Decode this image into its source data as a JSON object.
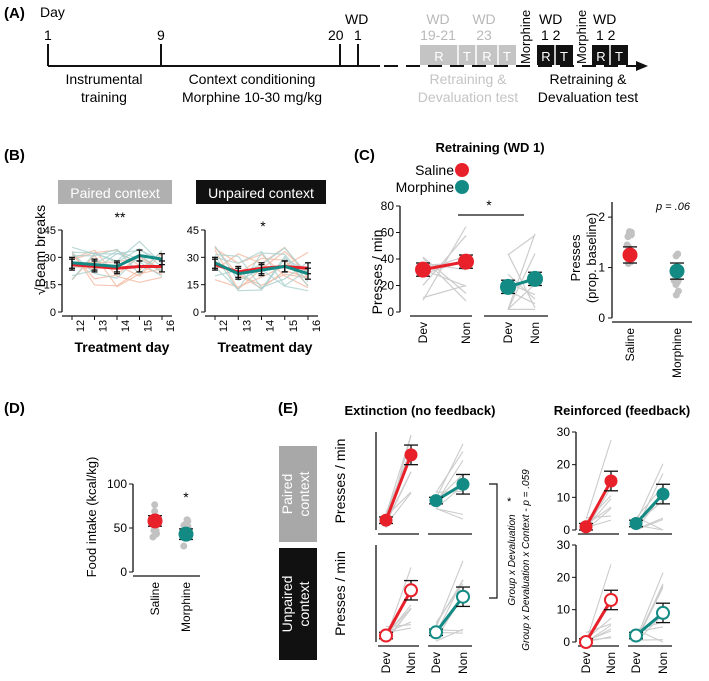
{
  "colors": {
    "saline": "#e8202a",
    "morphine": "#138a84",
    "gray": "#b9b9b9",
    "dark": "#111111",
    "lightgray": "#c4c4c4",
    "bgline": "#cfcfcf"
  },
  "panel_a": {
    "label": "(A)",
    "day_label": "Day",
    "ticks": [
      {
        "t": "1"
      },
      {
        "t": "9"
      },
      {
        "t": "20"
      },
      {
        "t": "1"
      }
    ],
    "wd_label": "WD",
    "phase1": "Instrumental",
    "phase1b": "training",
    "phase2": "Context conditioning",
    "phase2b": "Morphine 10-30 mg/kg",
    "gray_wd1": "WD",
    "gray_wd1_days": "19-21",
    "gray_wd2": "WD",
    "gray_wd2_days": "23",
    "gray_boxes": [
      "R",
      "T",
      "R",
      "T"
    ],
    "gray_caption1": "Retraining &",
    "gray_caption2": "Devaluation test",
    "morphine_label1": "Morphine",
    "morphine_label2": "Morphine",
    "black_wd1": "WD",
    "black_wd1_days": "1   2",
    "black_wd2": "WD",
    "black_wd2_days": "1   2",
    "black_boxes": [
      "R",
      "T",
      "R",
      "T"
    ],
    "black_caption1": "Retraining &",
    "black_caption2": "Devaluation test"
  },
  "panel_b": {
    "label": "(B)",
    "ylabel": "√Beam breaks",
    "paired_title": "Paired context",
    "unpaired_title": "Unpaired context",
    "paired_sig": "**",
    "unpaired_sig": "*",
    "xlabel": "Treatment day",
    "xticks": [
      "12",
      "13",
      "14",
      "15",
      "16"
    ],
    "yticks": [
      "0",
      "15",
      "30",
      "45"
    ]
  },
  "panel_c": {
    "label": "(C)",
    "title": "Retraining (WD 1)",
    "legend_saline": "Saline",
    "legend_morphine": "Morphine",
    "ylabel": "Presses / min",
    "yticks": [
      "0",
      "20",
      "40",
      "60",
      "80"
    ],
    "xticks": [
      "Dev",
      "Non",
      "Dev",
      "Non"
    ],
    "sig": "*",
    "right_ylabel1": "Presses",
    "right_ylabel2": "(prop. baseline)",
    "right_yticks": [
      "0",
      "1",
      "2"
    ],
    "right_p": "p = .06",
    "right_xticks": [
      "Saline",
      "Morphine"
    ]
  },
  "panel_d": {
    "label": "(D)",
    "ylabel": "Food intake (kcal/kg)",
    "yticks": [
      "0",
      "50",
      "100"
    ],
    "xticks": [
      "Saline",
      "Morphine"
    ],
    "sig": "*"
  },
  "panel_e": {
    "label": "(E)",
    "title_left": "Extinction (no feedback)",
    "title_right": "Reinforced (feedback)",
    "row1_label1": "Paired",
    "row1_label2": "context",
    "row2_label1": "Unpaired",
    "row2_label2": "context",
    "ylabel": "Presses / min",
    "yticks": [
      "0",
      "10",
      "20",
      "30"
    ],
    "xticks": [
      "Dev",
      "Non",
      "Dev",
      "Non"
    ],
    "stat1": "Group x Devaluation",
    "stat2": "Group x Devaluation x Context - p = .059",
    "stat_sig": "*"
  },
  "chart_data": [
    {
      "id": "B-paired",
      "type": "line",
      "title": "Paired context",
      "xlabel": "Treatment day",
      "ylabel": "√Beam breaks",
      "x": [
        12,
        13,
        14,
        15,
        16
      ],
      "ylim": [
        0,
        45
      ],
      "series": [
        {
          "name": "Saline",
          "values": [
            26,
            25,
            24,
            25,
            25
          ]
        },
        {
          "name": "Morphine",
          "values": [
            27,
            26,
            25,
            31,
            29
          ]
        }
      ]
    },
    {
      "id": "B-unpaired",
      "type": "line",
      "title": "Unpaired context",
      "xlabel": "Treatment day",
      "ylabel": "√Beam breaks",
      "x": [
        12,
        13,
        14,
        15,
        16
      ],
      "ylim": [
        0,
        45
      ],
      "series": [
        {
          "name": "Saline",
          "values": [
            26,
            22,
            24,
            25,
            24
          ]
        },
        {
          "name": "Morphine",
          "values": [
            27,
            21,
            23,
            25,
            21
          ]
        }
      ]
    },
    {
      "id": "C-retraining",
      "type": "line",
      "title": "Retraining (WD 1)",
      "ylabel": "Presses / min",
      "ylim": [
        0,
        80
      ],
      "categories": [
        "Dev",
        "Non"
      ],
      "series": [
        {
          "name": "Saline",
          "values": [
            32,
            38
          ]
        },
        {
          "name": "Morphine",
          "values": [
            19,
            25
          ]
        }
      ]
    },
    {
      "id": "C-prop",
      "type": "scatter",
      "ylabel": "Presses (prop. baseline)",
      "ylim": [
        0,
        2.3
      ],
      "categories": [
        "Saline",
        "Morphine"
      ],
      "values": [
        1.25,
        0.93
      ]
    },
    {
      "id": "D-food",
      "type": "scatter",
      "ylabel": "Food intake (kcal/kg)",
      "ylim": [
        0,
        100
      ],
      "categories": [
        "Saline",
        "Morphine"
      ],
      "values": [
        58,
        43
      ]
    },
    {
      "id": "E-paired-ext",
      "type": "line",
      "title": "Extinction (no feedback)",
      "ylim": [
        0,
        30
      ],
      "categories": [
        "Dev",
        "Non"
      ],
      "series": [
        {
          "name": "Saline",
          "values": [
            3,
            23
          ]
        },
        {
          "name": "Morphine",
          "values": [
            9,
            14
          ]
        }
      ]
    },
    {
      "id": "E-paired-reinf",
      "type": "line",
      "title": "Reinforced (feedback)",
      "ylim": [
        0,
        30
      ],
      "categories": [
        "Dev",
        "Non"
      ],
      "series": [
        {
          "name": "Saline",
          "values": [
            1,
            15
          ]
        },
        {
          "name": "Morphine",
          "values": [
            2,
            11
          ]
        }
      ]
    },
    {
      "id": "E-unpaired-ext",
      "type": "line",
      "title": "Extinction (no feedback)",
      "ylim": [
        0,
        30
      ],
      "categories": [
        "Dev",
        "Non"
      ],
      "series": [
        {
          "name": "Saline",
          "values": [
            2,
            16
          ]
        },
        {
          "name": "Morphine",
          "values": [
            3,
            14
          ]
        }
      ]
    },
    {
      "id": "E-unpaired-reinf",
      "type": "line",
      "title": "Reinforced (feedback)",
      "ylim": [
        0,
        30
      ],
      "categories": [
        "Dev",
        "Non"
      ],
      "series": [
        {
          "name": "Saline",
          "values": [
            0,
            13
          ]
        },
        {
          "name": "Morphine",
          "values": [
            2,
            9
          ]
        }
      ]
    }
  ]
}
